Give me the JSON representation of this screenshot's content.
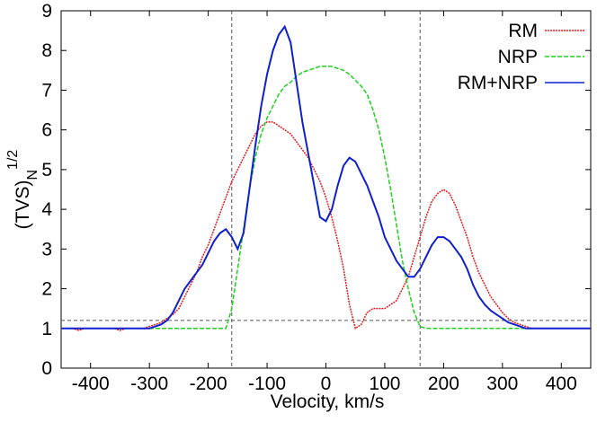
{
  "chart_data": {
    "type": "line",
    "xlabel": "Velocity, km/s",
    "ylabel": "(TVS)",
    "ylabel_sub": "N",
    "ylabel_sup": "1/2",
    "xlim": [
      -450,
      450
    ],
    "ylim": [
      0,
      9
    ],
    "xticks": [
      -400,
      -300,
      -200,
      -100,
      0,
      100,
      200,
      300,
      400
    ],
    "yticks": [
      0,
      1,
      2,
      3,
      4,
      5,
      6,
      7,
      8,
      9
    ],
    "vlines": [
      -160,
      160
    ],
    "hline": 1.2,
    "legend": "upper right",
    "x": [
      -450,
      -440,
      -430,
      -420,
      -410,
      -400,
      -390,
      -380,
      -370,
      -360,
      -350,
      -340,
      -330,
      -320,
      -310,
      -300,
      -290,
      -280,
      -270,
      -260,
      -250,
      -240,
      -230,
      -220,
      -210,
      -200,
      -190,
      -180,
      -170,
      -160,
      -150,
      -140,
      -130,
      -120,
      -110,
      -100,
      -90,
      -80,
      -70,
      -60,
      -50,
      -40,
      -30,
      -20,
      -10,
      0,
      10,
      20,
      30,
      40,
      50,
      60,
      70,
      80,
      90,
      100,
      110,
      120,
      130,
      140,
      150,
      160,
      170,
      180,
      190,
      200,
      210,
      220,
      230,
      240,
      250,
      260,
      270,
      280,
      290,
      300,
      310,
      320,
      330,
      340,
      350,
      360,
      370,
      380,
      390,
      400,
      410,
      420,
      430,
      440,
      450
    ],
    "series": [
      {
        "name": "RM",
        "color": "#e02020",
        "dash": "2,1",
        "values": [
          1.0,
          1.0,
          1.0,
          0.95,
          1.0,
          1.0,
          1.0,
          1.0,
          1.0,
          1.0,
          0.95,
          1.0,
          1.0,
          1.0,
          1.0,
          1.05,
          1.1,
          1.15,
          1.25,
          1.35,
          1.5,
          1.8,
          2.1,
          2.4,
          2.8,
          3.1,
          3.5,
          3.9,
          4.3,
          4.7,
          5.0,
          5.3,
          5.6,
          5.9,
          6.1,
          6.2,
          6.2,
          6.1,
          6.0,
          5.9,
          5.7,
          5.5,
          5.3,
          5.0,
          4.7,
          4.3,
          3.8,
          3.2,
          2.5,
          1.6,
          1.0,
          1.1,
          1.4,
          1.5,
          1.5,
          1.5,
          1.6,
          1.7,
          2.0,
          2.3,
          2.8,
          3.3,
          3.8,
          4.2,
          4.4,
          4.5,
          4.4,
          4.1,
          3.7,
          3.3,
          2.8,
          2.4,
          2.1,
          1.8,
          1.6,
          1.4,
          1.25,
          1.15,
          1.1,
          1.05,
          1.0,
          1.0,
          1.0,
          1.0,
          1.0,
          1.0,
          1.0,
          1.0,
          1.0,
          1.0,
          1.0
        ]
      },
      {
        "name": "NRP",
        "color": "#20d020",
        "dash": "5,2",
        "values": [
          1.0,
          1.0,
          1.0,
          1.0,
          1.0,
          1.0,
          1.0,
          1.0,
          1.0,
          1.0,
          1.0,
          1.0,
          1.0,
          1.0,
          1.0,
          1.0,
          1.0,
          1.0,
          1.0,
          1.0,
          1.0,
          1.0,
          1.0,
          1.0,
          1.0,
          1.0,
          1.0,
          1.0,
          1.0,
          1.5,
          2.5,
          3.5,
          4.5,
          5.3,
          5.9,
          6.3,
          6.6,
          6.9,
          7.1,
          7.2,
          7.35,
          7.45,
          7.5,
          7.55,
          7.6,
          7.6,
          7.6,
          7.55,
          7.5,
          7.4,
          7.25,
          7.1,
          6.9,
          6.5,
          6.0,
          5.3,
          4.5,
          3.6,
          2.7,
          2.0,
          1.4,
          1.05,
          1.0,
          1.0,
          1.0,
          1.0,
          1.0,
          1.0,
          1.0,
          1.0,
          1.0,
          1.0,
          1.0,
          1.0,
          1.0,
          1.0,
          1.0,
          1.0,
          1.0,
          1.0,
          1.0,
          1.0,
          1.0,
          1.0,
          1.0,
          1.0,
          1.0,
          1.0,
          1.0,
          1.0,
          1.0
        ]
      },
      {
        "name": "RM+NRP",
        "color": "#1020d0",
        "dash": "none",
        "values": [
          1.0,
          1.0,
          1.0,
          1.0,
          1.0,
          1.0,
          1.0,
          1.0,
          1.0,
          1.0,
          1.0,
          1.0,
          1.0,
          1.0,
          1.0,
          1.0,
          1.05,
          1.1,
          1.2,
          1.4,
          1.7,
          2.0,
          2.2,
          2.4,
          2.6,
          2.9,
          3.2,
          3.4,
          3.5,
          3.3,
          3.0,
          3.4,
          4.5,
          5.6,
          6.6,
          7.4,
          8.0,
          8.4,
          8.6,
          8.2,
          7.2,
          6.2,
          5.4,
          4.6,
          3.8,
          3.7,
          4.0,
          4.6,
          5.1,
          5.3,
          5.2,
          4.9,
          4.6,
          4.2,
          3.8,
          3.3,
          3.0,
          2.7,
          2.5,
          2.3,
          2.3,
          2.5,
          2.8,
          3.1,
          3.3,
          3.3,
          3.2,
          3.0,
          2.8,
          2.5,
          2.1,
          1.8,
          1.6,
          1.45,
          1.35,
          1.25,
          1.15,
          1.1,
          1.05,
          1.0,
          1.0,
          1.0,
          1.0,
          1.0,
          1.0,
          1.0,
          1.0,
          1.0,
          1.0,
          1.0,
          1.0
        ]
      }
    ]
  }
}
